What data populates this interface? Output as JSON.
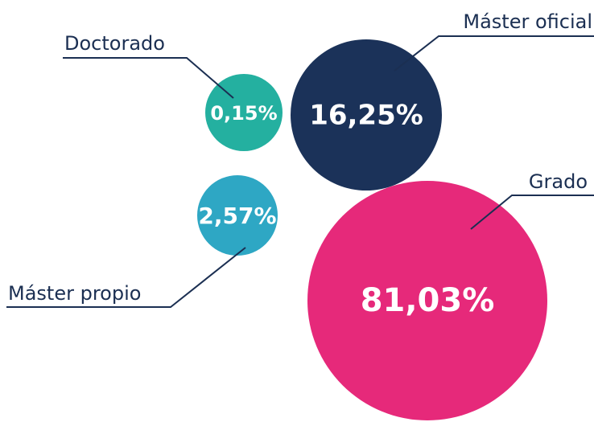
{
  "chart_data": {
    "type": "bubble",
    "categories": [
      "Doctorado",
      "Máster oficial",
      "Máster propio",
      "Grado"
    ],
    "values": [
      0.15,
      16.25,
      2.57,
      81.03
    ],
    "value_labels": [
      "0,15%",
      "16,25%",
      "2,57%",
      "81,03%"
    ],
    "colors": [
      "#24b0a0",
      "#1b3259",
      "#2ea7c4",
      "#e6297a"
    ]
  }
}
